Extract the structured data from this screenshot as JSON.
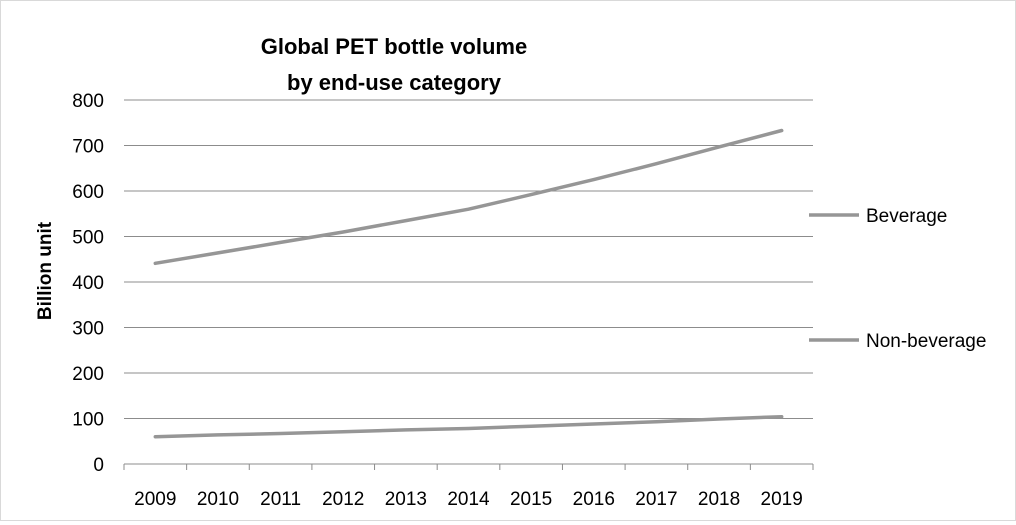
{
  "chart_data": {
    "type": "line",
    "title_lines": [
      "Global PET bottle volume",
      "by end-use category"
    ],
    "xlabel": "",
    "ylabel": "Billion unit",
    "ylim": [
      0,
      800
    ],
    "y_ticks": [
      0,
      100,
      200,
      300,
      400,
      500,
      600,
      700,
      800
    ],
    "categories": [
      "2009",
      "2010",
      "2011",
      "2012",
      "2013",
      "2014",
      "2015",
      "2016",
      "2017",
      "2018",
      "2019"
    ],
    "grid": true,
    "legend_position": "right",
    "series": [
      {
        "name": "Beverage",
        "color": "#969696",
        "values": [
          441,
          464,
          487,
          510,
          535,
          560,
          592,
          625,
          660,
          697,
          733
        ]
      },
      {
        "name": "Non-beverage",
        "color": "#969696",
        "values": [
          60,
          64,
          67,
          71,
          75,
          78,
          83,
          88,
          93,
          99,
          104
        ]
      }
    ]
  }
}
